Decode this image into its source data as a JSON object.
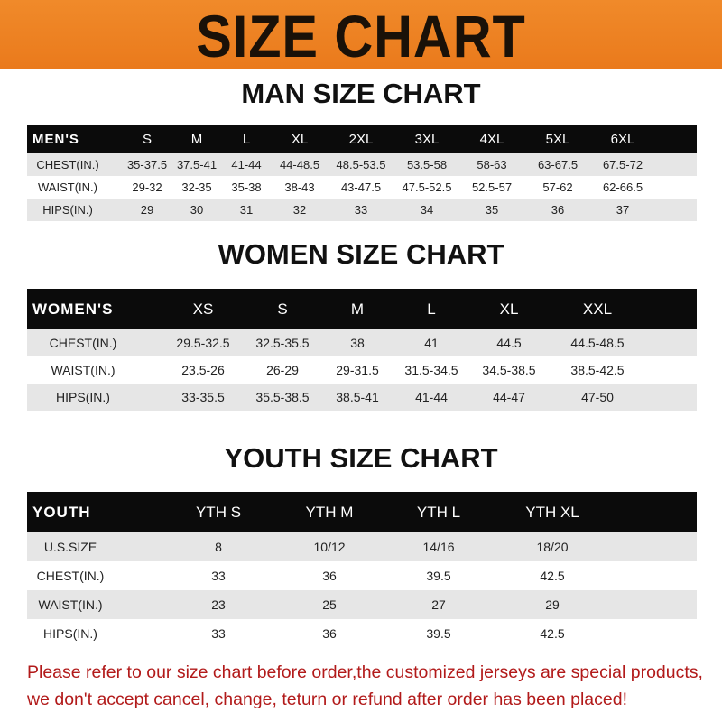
{
  "banner": {
    "title": "SIZE CHART",
    "color": "#ee8224"
  },
  "men": {
    "title": "MAN SIZE CHART",
    "header": [
      "MEN'S",
      "S",
      "M",
      "L",
      "XL",
      "2XL",
      "3XL",
      "4XL",
      "5XL",
      "6XL"
    ],
    "rows": [
      [
        "CHEST(IN.)",
        "35-37.5",
        "37.5-41",
        "41-44",
        "44-48.5",
        "48.5-53.5",
        "53.5-58",
        "58-63",
        "63-67.5",
        "67.5-72"
      ],
      [
        "WAIST(IN.)",
        "29-32",
        "32-35",
        "35-38",
        "38-43",
        "43-47.5",
        "47.5-52.5",
        "52.5-57",
        "57-62",
        "62-66.5"
      ],
      [
        "HIPS(IN.)",
        "29",
        "30",
        "31",
        "32",
        "33",
        "34",
        "35",
        "36",
        "37"
      ]
    ]
  },
  "women": {
    "title": "WOMEN SIZE CHART",
    "header": [
      "WOMEN'S",
      "XS",
      "S",
      "M",
      "L",
      "XL",
      "XXL"
    ],
    "rows": [
      [
        "CHEST(IN.)",
        "29.5-32.5",
        "32.5-35.5",
        "38",
        "41",
        "44.5",
        "44.5-48.5"
      ],
      [
        "WAIST(IN.)",
        "23.5-26",
        "26-29",
        "29-31.5",
        "31.5-34.5",
        "34.5-38.5",
        "38.5-42.5"
      ],
      [
        "HIPS(IN.)",
        "33-35.5",
        "35.5-38.5",
        "38.5-41",
        "41-44",
        "44-47",
        "47-50"
      ]
    ]
  },
  "youth": {
    "title": "YOUTH SIZE CHART",
    "header": [
      "YOUTH",
      "YTH S",
      "YTH M",
      "YTH L",
      "YTH XL"
    ],
    "rows": [
      [
        "U.S.SIZE",
        "8",
        "10/12",
        "14/16",
        "18/20"
      ],
      [
        "CHEST(IN.)",
        "33",
        "36",
        "39.5",
        "42.5"
      ],
      [
        "WAIST(IN.)",
        "23",
        "25",
        "27",
        "29"
      ],
      [
        "HIPS(IN.)",
        "33",
        "36",
        "39.5",
        "42.5"
      ]
    ]
  },
  "footer": {
    "line1": "Please refer to our size chart before order,the customized jerseys are special products,",
    "line2": "we don't accept cancel, change, teturn or refund after order has been placed!"
  }
}
